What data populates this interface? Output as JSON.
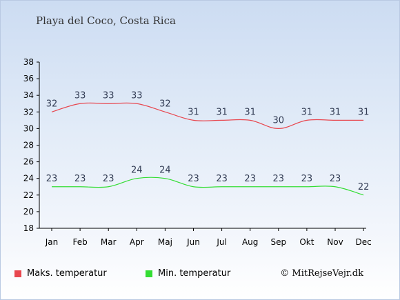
{
  "title": "Playa del Coco, Costa Rica",
  "credit": "© MitRejseVejr.dk",
  "chart_data": {
    "type": "line",
    "categories": [
      "Jan",
      "Feb",
      "Mar",
      "Apr",
      "Maj",
      "Jun",
      "Jul",
      "Aug",
      "Sep",
      "Okt",
      "Nov",
      "Dec"
    ],
    "ylim": [
      18,
      38
    ],
    "yticks": [
      18,
      20,
      22,
      24,
      26,
      28,
      30,
      32,
      34,
      36,
      38
    ],
    "grid": false,
    "legend_position": "bottom",
    "series": [
      {
        "name": "Maks. temperatur",
        "color": "#e8474f",
        "values": [
          32,
          33,
          33,
          33,
          32,
          31,
          31,
          31,
          30,
          31,
          31,
          31
        ]
      },
      {
        "name": "Min. temperatur",
        "color": "#33dd33",
        "values": [
          23,
          23,
          23,
          24,
          24,
          23,
          23,
          23,
          23,
          23,
          23,
          22
        ]
      }
    ]
  }
}
